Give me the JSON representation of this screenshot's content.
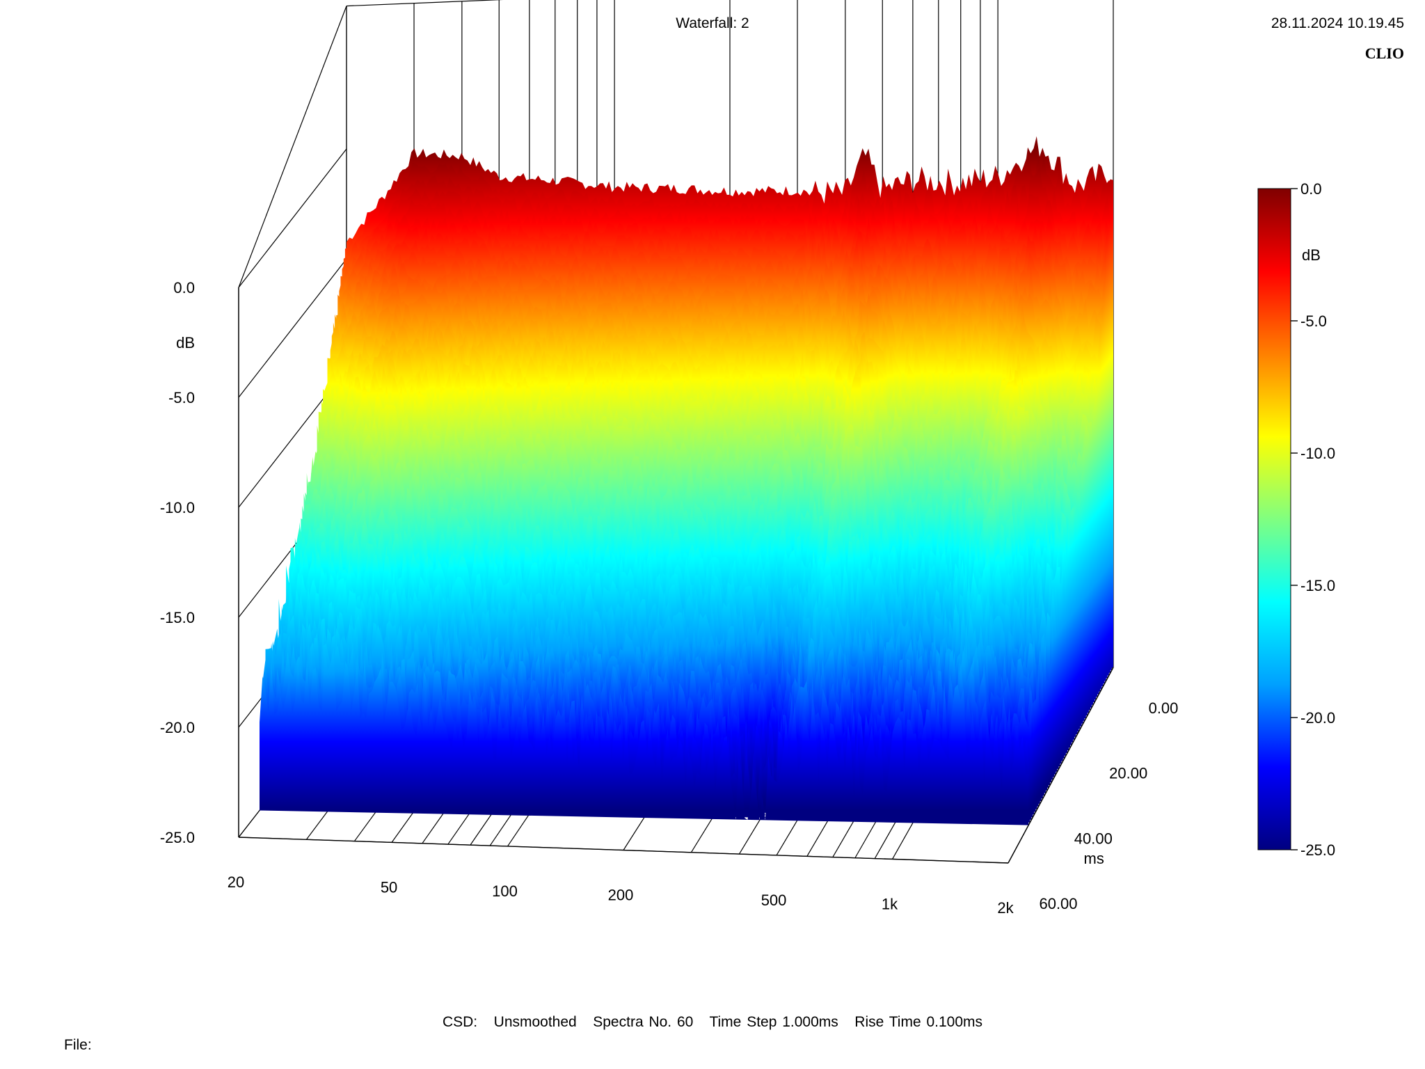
{
  "header": {
    "title": "Waterfall: 2",
    "timestamp": "28.11.2024 10.19.45",
    "brand": "CLIO"
  },
  "footer": {
    "csd_label": "CSD:",
    "smoothing": "Unsmoothed",
    "spectra": "Spectra No. 60",
    "time_step": "Time Step 1.000ms",
    "rise_time": "Rise Time 0.100ms",
    "file_label": "File:"
  },
  "colors": {
    "colormap": [
      "#000080",
      "#0000ff",
      "#00a0ff",
      "#00ffff",
      "#80ff80",
      "#ffff00",
      "#ff8000",
      "#ff0000",
      "#800000"
    ]
  },
  "chart_data": {
    "type": "waterfall",
    "title": "Waterfall: 2",
    "x_axis": {
      "label": "",
      "scale": "log",
      "ticks": [
        "20",
        "50",
        "100",
        "200",
        "500",
        "1k",
        "2k"
      ],
      "range_hz": [
        20,
        2000
      ]
    },
    "y_axis": {
      "label": "dB",
      "ticks": [
        "0.0",
        "-5.0",
        "-10.0",
        "-15.0",
        "-20.0",
        "-25.0"
      ],
      "range_db": [
        -25,
        0
      ]
    },
    "z_axis": {
      "label": "ms",
      "ticks": [
        "0.00",
        "20.00",
        "40.00",
        "60.00"
      ],
      "range_ms": [
        0,
        60
      ]
    },
    "colorbar": {
      "label": "dB",
      "ticks": [
        "0.0",
        "-5.0",
        "-10.0",
        "-15.0",
        "-20.0",
        "-25.0"
      ],
      "range_db": [
        -25,
        0
      ]
    },
    "spectra_count": 60,
    "series": [
      {
        "time_ms": 0,
        "freq_hz": [
          20,
          25,
          30,
          40,
          50,
          70,
          100,
          150,
          200,
          300,
          400,
          450,
          500,
          600,
          800,
          1000,
          1300,
          1600,
          2000
        ],
        "db": [
          -4.2,
          -2.2,
          -0.3,
          -0.5,
          -1.5,
          -1.8,
          -2.2,
          -2.4,
          -2.6,
          -2.7,
          -2.9,
          -1.2,
          -2.8,
          -2.4,
          -2.6,
          -2.4,
          -1.0,
          -3.0,
          -2.3
        ]
      },
      {
        "time_ms": 10,
        "freq_hz": [
          20,
          30,
          50,
          100,
          200,
          300,
          400,
          500,
          600,
          800,
          1000,
          1300,
          1600,
          2000
        ],
        "db": [
          -8.5,
          -6.5,
          -7.5,
          -8.5,
          -9.5,
          -10.0,
          -10.5,
          -8.0,
          -11.0,
          -11.5,
          -12.0,
          -9.0,
          -12.5,
          -11.5
        ]
      },
      {
        "time_ms": 20,
        "freq_hz": [
          20,
          30,
          50,
          100,
          200,
          300,
          400,
          500,
          700,
          1000,
          1300,
          1600,
          2000
        ],
        "db": [
          -12.5,
          -10.5,
          -11.5,
          -12.5,
          -13.0,
          -13.5,
          -14.0,
          -12.0,
          -14.5,
          -15.0,
          -12.5,
          -15.0,
          -14.5
        ]
      },
      {
        "time_ms": 30,
        "freq_hz": [
          20,
          30,
          50,
          100,
          200,
          300,
          400,
          500,
          700,
          1000,
          1300,
          1600,
          2000
        ],
        "db": [
          -15.5,
          -14.0,
          -15.0,
          -16.0,
          -16.5,
          -17.0,
          -18.0,
          -15.5,
          -17.5,
          -17.5,
          -15.5,
          -17.5,
          -17.0
        ]
      },
      {
        "time_ms": 40,
        "freq_hz": [
          20,
          30,
          50,
          100,
          200,
          300,
          400,
          500,
          700,
          1000,
          1300,
          1600,
          2000
        ],
        "db": [
          -18.0,
          -17.0,
          -18.0,
          -19.0,
          -19.5,
          -20.0,
          -22.0,
          -19.0,
          -20.5,
          -20.0,
          -18.0,
          -20.0,
          -19.5
        ]
      },
      {
        "time_ms": 50,
        "freq_hz": [
          20,
          30,
          50,
          100,
          200,
          300,
          400,
          500,
          700,
          1000,
          1300,
          1600,
          2000
        ],
        "db": [
          -20.0,
          -19.0,
          -20.5,
          -21.5,
          -22.0,
          -22.5,
          -25.0,
          -21.0,
          -22.5,
          -22.0,
          -20.0,
          -22.0,
          -21.5
        ]
      },
      {
        "time_ms": 60,
        "freq_hz": [
          20,
          30,
          50,
          100,
          200,
          300,
          400,
          500,
          700,
          1000,
          1300,
          1600,
          2000
        ],
        "db": [
          -21.5,
          -21.0,
          -22.0,
          -23.0,
          -23.5,
          -24.0,
          -25.0,
          -22.5,
          -24.0,
          -23.5,
          -21.5,
          -23.5,
          -23.0
        ]
      }
    ]
  }
}
